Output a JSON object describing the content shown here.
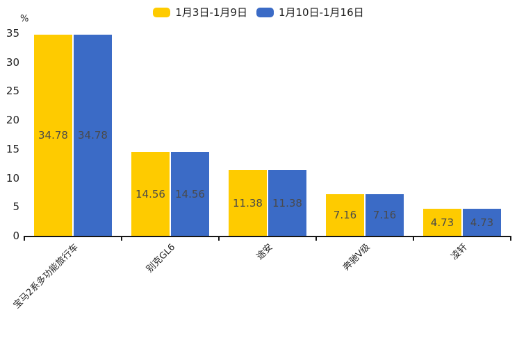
{
  "chart_data": {
    "type": "bar",
    "unit_label": "%",
    "categories": [
      "宝马2系多功能旅行车",
      "别克GL6",
      "途安",
      "奔驰V级",
      "凌轩"
    ],
    "series": [
      {
        "name": "1月3日-1月9日",
        "color": "#FECB00",
        "values": [
          34.78,
          14.56,
          11.38,
          7.16,
          4.73
        ]
      },
      {
        "name": "1月10日-1月16日",
        "color": "#3B6BC6",
        "values": [
          34.78,
          14.56,
          11.38,
          7.16,
          4.73
        ]
      }
    ],
    "ylim": [
      0,
      35
    ],
    "yticks": [
      0,
      5,
      10,
      15,
      20,
      25,
      30,
      35
    ],
    "grid": false,
    "legend_position": "top-center",
    "value_labels": true,
    "colors": {
      "axis": "#161616",
      "value_label": "#4a4a4a",
      "tick_label": "#1f1f1f"
    }
  }
}
